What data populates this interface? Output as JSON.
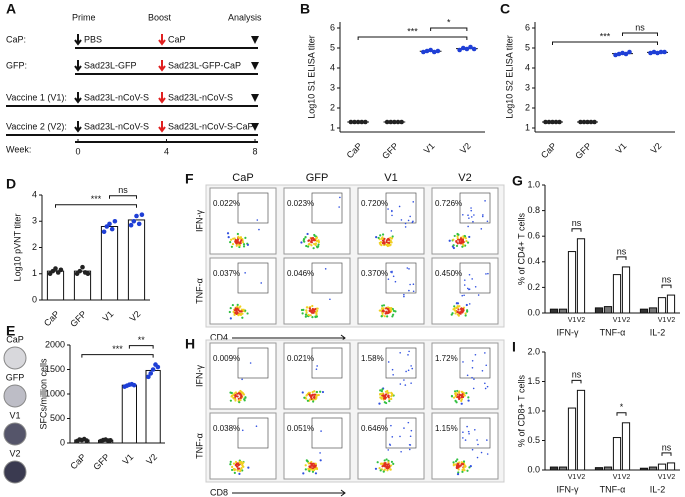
{
  "schematic": {
    "panel": "A",
    "phases": [
      "Prime",
      "Boost",
      "Analysis"
    ],
    "rows": [
      {
        "label": "CaP:",
        "prime": "PBS",
        "boost": "CaP"
      },
      {
        "label": "GFP:",
        "prime": "Sad23L-GFP",
        "boost": "Sad23L-GFP-CaP"
      },
      {
        "label": "Vaccine 1 (V1):",
        "prime": "Sad23L-nCoV-S",
        "boost": "Sad23L-nCoV-S"
      },
      {
        "label": "Vaccine 2 (V2):",
        "prime": "Sad23L-nCoV-S",
        "boost": "Sad23L-nCoV-S-CaP"
      }
    ],
    "week_label": "Week:",
    "weeks": [
      0,
      4,
      8
    ]
  },
  "chart_data": [
    {
      "type": "dot",
      "panel": "B",
      "y_label": "Log10 S1 ELISA titer",
      "categories": [
        "CaP",
        "GFP",
        "V1",
        "V2"
      ],
      "values": [
        1.3,
        1.3,
        4.84,
        4.97
      ],
      "points": [
        [
          1.3,
          1.3,
          1.3,
          1.3,
          1.3
        ],
        [
          1.3,
          1.3,
          1.3,
          1.3,
          1.3
        ],
        [
          4.8,
          4.85,
          4.9,
          4.8,
          4.85
        ],
        [
          4.9,
          5.0,
          4.95,
          5.05,
          4.95
        ]
      ],
      "point_colors": [
        "#222222",
        "#222222",
        "#1f3fd6",
        "#1f3fd6"
      ],
      "ylim": [
        0.8,
        6.3
      ],
      "yticks": [
        1,
        2,
        3,
        4,
        5,
        6
      ],
      "annotations": [
        {
          "text": "***",
          "from": 0,
          "to": 3
        },
        {
          "text": "*",
          "from": 2,
          "to": 3
        }
      ]
    },
    {
      "type": "dot",
      "panel": "C",
      "y_label": "Log10 S2 ELISA titer",
      "categories": [
        "CaP",
        "GFP",
        "V1",
        "V2"
      ],
      "values": [
        1.3,
        1.3,
        4.72,
        4.78
      ],
      "points": [
        [
          1.3,
          1.3,
          1.3,
          1.3,
          1.3
        ],
        [
          1.3,
          1.3,
          1.3,
          1.3,
          1.3
        ],
        [
          4.65,
          4.7,
          4.75,
          4.7,
          4.8
        ],
        [
          4.75,
          4.8,
          4.75,
          4.8,
          4.8
        ]
      ],
      "point_colors": [
        "#222222",
        "#222222",
        "#1f3fd6",
        "#1f3fd6"
      ],
      "ylim": [
        0.8,
        6.3
      ],
      "yticks": [
        1,
        2,
        3,
        4,
        5,
        6
      ],
      "annotations": [
        {
          "text": "***",
          "from": 0,
          "to": 3
        },
        {
          "text": "ns",
          "from": 2,
          "to": 3
        }
      ]
    },
    {
      "type": "bar",
      "panel": "D",
      "y_label": "Log10 pVNT titer",
      "categories": [
        "CaP",
        "GFP",
        "V1",
        "V2"
      ],
      "values": [
        1.1,
        1.1,
        2.8,
        3.05
      ],
      "points": [
        [
          1.0,
          1.1,
          1.2,
          1.05,
          1.15
        ],
        [
          1.0,
          1.1,
          1.25,
          1.05,
          1.0
        ],
        [
          2.6,
          2.8,
          2.9,
          2.7,
          3.0
        ],
        [
          2.85,
          3.0,
          3.2,
          2.9,
          3.25
        ]
      ],
      "point_colors": [
        "#222222",
        "#222222",
        "#1f3fd6",
        "#1f3fd6"
      ],
      "ylim": [
        0,
        4
      ],
      "yticks": [
        0,
        1,
        2,
        3,
        4
      ],
      "annotations": [
        {
          "text": "***",
          "from": 0,
          "to": 3
        },
        {
          "text": "ns",
          "from": 2,
          "to": 3
        }
      ]
    },
    {
      "type": "bar",
      "panel": "E",
      "y_label": "SFCs/million cells",
      "categories": [
        "CaP",
        "GFP",
        "V1",
        "V2"
      ],
      "values": [
        60,
        55,
        1180,
        1480
      ],
      "points": [
        [
          40,
          70,
          60,
          80,
          50
        ],
        [
          40,
          60,
          70,
          50,
          55
        ],
        [
          1150,
          1170,
          1190,
          1200,
          1180
        ],
        [
          1350,
          1420,
          1500,
          1600,
          1550
        ]
      ],
      "point_colors": [
        "#222222",
        "#222222",
        "#1f3fd6",
        "#1f3fd6"
      ],
      "ylim": [
        0,
        2000
      ],
      "yticks": [
        0,
        500,
        1000,
        1500,
        2000
      ],
      "annotations": [
        {
          "text": "***",
          "from": 0,
          "to": 3
        },
        {
          "text": "**",
          "from": 2,
          "to": 3
        }
      ]
    },
    {
      "type": "grouped_bar",
      "panel": "G",
      "y_label": "% of CD4+ T cells",
      "categories": [
        "IFN-γ",
        "TNF-α",
        "IL-2"
      ],
      "series": [
        {
          "color": "#333333",
          "values": [
            0.03,
            0.04,
            0.03
          ]
        },
        {
          "color": "#777777",
          "values": [
            0.03,
            0.05,
            0.04
          ]
        },
        {
          "name": "V1",
          "color": "#ffffff",
          "values": [
            0.48,
            0.3,
            0.12
          ]
        },
        {
          "name": "V2",
          "color": "#ffffff",
          "values": [
            0.58,
            0.36,
            0.14
          ]
        }
      ],
      "ylim": [
        0,
        1
      ],
      "yticks": [
        {
          "value": 0,
          "label": "0.0"
        },
        0.2,
        0.4,
        0.6,
        0.8,
        {
          "value": 1,
          "label": "1.0"
        }
      ],
      "annotations": [
        {
          "text": "ns",
          "group": 0,
          "from": 2,
          "to": 3
        },
        {
          "text": "ns",
          "group": 1,
          "from": 2,
          "to": 3
        },
        {
          "text": "ns",
          "group": 2,
          "from": 2,
          "to": 3
        }
      ]
    },
    {
      "type": "grouped_bar",
      "panel": "I",
      "y_label": "% of CD8+ T cells",
      "categories": [
        "IFN-γ",
        "TNF-α",
        "IL-2"
      ],
      "series": [
        {
          "color": "#333333",
          "values": [
            0.05,
            0.04,
            0.03
          ]
        },
        {
          "color": "#777777",
          "values": [
            0.05,
            0.05,
            0.05
          ]
        },
        {
          "name": "V1",
          "color": "#ffffff",
          "values": [
            1.05,
            0.55,
            0.1
          ]
        },
        {
          "name": "V2",
          "color": "#ffffff",
          "values": [
            1.35,
            0.8,
            0.12
          ]
        }
      ],
      "ylim": [
        0,
        2
      ],
      "yticks": [
        {
          "value": 0,
          "label": "0.0"
        },
        0.5,
        {
          "value": 1,
          "label": "1.0"
        },
        1.5,
        {
          "value": 2,
          "label": "2.0"
        }
      ],
      "annotations": [
        {
          "text": "ns",
          "group": 0,
          "from": 2,
          "to": 3
        },
        {
          "text": "*",
          "group": 1,
          "from": 2,
          "to": 3
        },
        {
          "text": "ns",
          "group": 2,
          "from": 2,
          "to": 3
        }
      ]
    }
  ],
  "flow_panels": [
    {
      "panel": "F",
      "columns": [
        "CaP",
        "GFP",
        "V1",
        "V2"
      ],
      "rows": [
        "IFN-γ",
        "TNF-α"
      ],
      "x_label": "CD4",
      "percents": [
        [
          "0.022%",
          "0.023%",
          "0.720%",
          "0.726%"
        ],
        [
          "0.037%",
          "0.046%",
          "0.370%",
          "0.450%"
        ]
      ]
    },
    {
      "panel": "H",
      "rows": [
        "IFN-γ",
        "TNF-α"
      ],
      "x_label": "CD8",
      "percents": [
        [
          "0.009%",
          "0.021%",
          "1.58%",
          "1.72%"
        ],
        [
          "0.038%",
          "0.051%",
          "0.646%",
          "1.15%"
        ]
      ]
    }
  ]
}
